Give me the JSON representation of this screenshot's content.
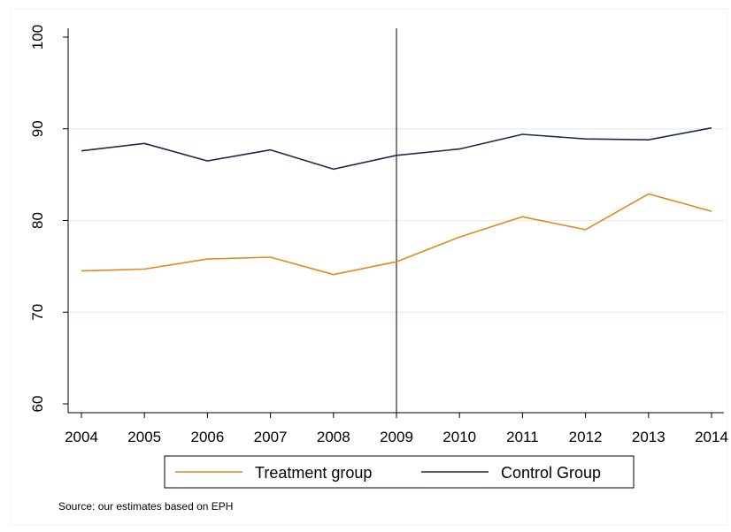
{
  "chart_data": {
    "type": "line",
    "x": [
      2004,
      2005,
      2006,
      2007,
      2008,
      2009,
      2010,
      2011,
      2012,
      2013,
      2014
    ],
    "series": [
      {
        "name": "Treatment group",
        "color": "#e08a1e",
        "values": [
          74.5,
          74.7,
          75.8,
          76.0,
          74.1,
          75.5,
          78.2,
          80.4,
          79.0,
          82.9,
          81.0
        ]
      },
      {
        "name": "Control Group",
        "color": "#1c2a4a",
        "values": [
          87.6,
          88.4,
          86.5,
          87.7,
          85.6,
          87.1,
          87.8,
          89.4,
          88.9,
          88.8,
          90.1
        ]
      }
    ],
    "xticks": [
      "2004",
      "2005",
      "2006",
      "2007",
      "2008",
      "2009",
      "2010",
      "2011",
      "2012",
      "2013",
      "2014"
    ],
    "yticks": [
      "60",
      "70",
      "80",
      "90",
      "100"
    ],
    "xlim": [
      2004,
      2014
    ],
    "ylim": [
      60,
      100
    ],
    "vline_x": 2009,
    "grid": true,
    "legend_position": "bottom",
    "title": "",
    "xlabel": "",
    "ylabel": ""
  },
  "note": "Source: our estimates based on EPH"
}
